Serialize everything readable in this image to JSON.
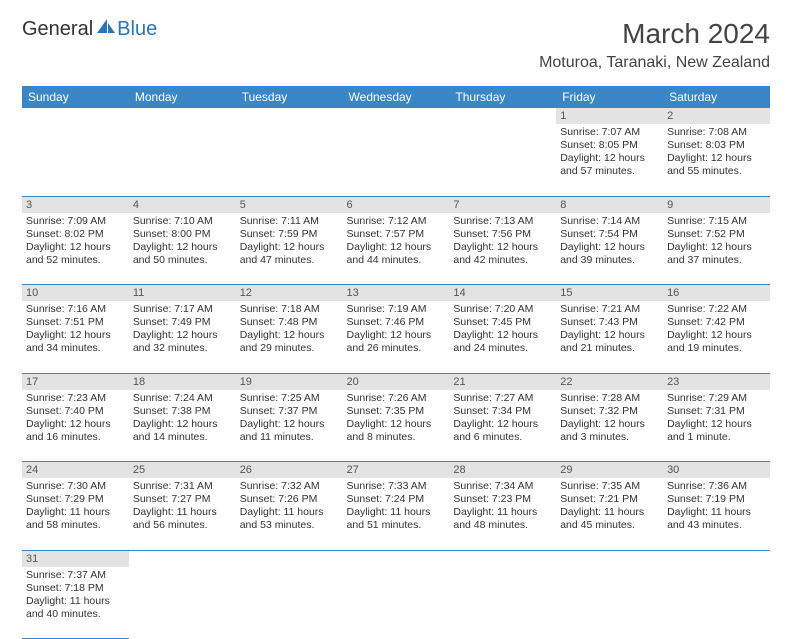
{
  "logo": {
    "text1": "General",
    "text2": "Blue"
  },
  "title": "March 2024",
  "location": "Moturoa, Taranaki, New Zealand",
  "colors": {
    "header_bg": "#3b86c6",
    "header_fg": "#ffffff",
    "daynum_bg": "#e3e3e3",
    "daynum_fg": "#555555",
    "border": "#3b86c6",
    "text": "#333333",
    "logo_blue": "#2a75bb"
  },
  "day_headers": [
    "Sunday",
    "Monday",
    "Tuesday",
    "Wednesday",
    "Thursday",
    "Friday",
    "Saturday"
  ],
  "weeks": [
    {
      "nums": [
        "",
        "",
        "",
        "",
        "",
        "1",
        "2"
      ],
      "cells": [
        null,
        null,
        null,
        null,
        null,
        {
          "sunrise": "Sunrise: 7:07 AM",
          "sunset": "Sunset: 8:05 PM",
          "day1": "Daylight: 12 hours",
          "day2": "and 57 minutes."
        },
        {
          "sunrise": "Sunrise: 7:08 AM",
          "sunset": "Sunset: 8:03 PM",
          "day1": "Daylight: 12 hours",
          "day2": "and 55 minutes."
        }
      ]
    },
    {
      "nums": [
        "3",
        "4",
        "5",
        "6",
        "7",
        "8",
        "9"
      ],
      "cells": [
        {
          "sunrise": "Sunrise: 7:09 AM",
          "sunset": "Sunset: 8:02 PM",
          "day1": "Daylight: 12 hours",
          "day2": "and 52 minutes."
        },
        {
          "sunrise": "Sunrise: 7:10 AM",
          "sunset": "Sunset: 8:00 PM",
          "day1": "Daylight: 12 hours",
          "day2": "and 50 minutes."
        },
        {
          "sunrise": "Sunrise: 7:11 AM",
          "sunset": "Sunset: 7:59 PM",
          "day1": "Daylight: 12 hours",
          "day2": "and 47 minutes."
        },
        {
          "sunrise": "Sunrise: 7:12 AM",
          "sunset": "Sunset: 7:57 PM",
          "day1": "Daylight: 12 hours",
          "day2": "and 44 minutes."
        },
        {
          "sunrise": "Sunrise: 7:13 AM",
          "sunset": "Sunset: 7:56 PM",
          "day1": "Daylight: 12 hours",
          "day2": "and 42 minutes."
        },
        {
          "sunrise": "Sunrise: 7:14 AM",
          "sunset": "Sunset: 7:54 PM",
          "day1": "Daylight: 12 hours",
          "day2": "and 39 minutes."
        },
        {
          "sunrise": "Sunrise: 7:15 AM",
          "sunset": "Sunset: 7:52 PM",
          "day1": "Daylight: 12 hours",
          "day2": "and 37 minutes."
        }
      ]
    },
    {
      "nums": [
        "10",
        "11",
        "12",
        "13",
        "14",
        "15",
        "16"
      ],
      "cells": [
        {
          "sunrise": "Sunrise: 7:16 AM",
          "sunset": "Sunset: 7:51 PM",
          "day1": "Daylight: 12 hours",
          "day2": "and 34 minutes."
        },
        {
          "sunrise": "Sunrise: 7:17 AM",
          "sunset": "Sunset: 7:49 PM",
          "day1": "Daylight: 12 hours",
          "day2": "and 32 minutes."
        },
        {
          "sunrise": "Sunrise: 7:18 AM",
          "sunset": "Sunset: 7:48 PM",
          "day1": "Daylight: 12 hours",
          "day2": "and 29 minutes."
        },
        {
          "sunrise": "Sunrise: 7:19 AM",
          "sunset": "Sunset: 7:46 PM",
          "day1": "Daylight: 12 hours",
          "day2": "and 26 minutes."
        },
        {
          "sunrise": "Sunrise: 7:20 AM",
          "sunset": "Sunset: 7:45 PM",
          "day1": "Daylight: 12 hours",
          "day2": "and 24 minutes."
        },
        {
          "sunrise": "Sunrise: 7:21 AM",
          "sunset": "Sunset: 7:43 PM",
          "day1": "Daylight: 12 hours",
          "day2": "and 21 minutes."
        },
        {
          "sunrise": "Sunrise: 7:22 AM",
          "sunset": "Sunset: 7:42 PM",
          "day1": "Daylight: 12 hours",
          "day2": "and 19 minutes."
        }
      ]
    },
    {
      "nums": [
        "17",
        "18",
        "19",
        "20",
        "21",
        "22",
        "23"
      ],
      "cells": [
        {
          "sunrise": "Sunrise: 7:23 AM",
          "sunset": "Sunset: 7:40 PM",
          "day1": "Daylight: 12 hours",
          "day2": "and 16 minutes."
        },
        {
          "sunrise": "Sunrise: 7:24 AM",
          "sunset": "Sunset: 7:38 PM",
          "day1": "Daylight: 12 hours",
          "day2": "and 14 minutes."
        },
        {
          "sunrise": "Sunrise: 7:25 AM",
          "sunset": "Sunset: 7:37 PM",
          "day1": "Daylight: 12 hours",
          "day2": "and 11 minutes."
        },
        {
          "sunrise": "Sunrise: 7:26 AM",
          "sunset": "Sunset: 7:35 PM",
          "day1": "Daylight: 12 hours",
          "day2": "and 8 minutes."
        },
        {
          "sunrise": "Sunrise: 7:27 AM",
          "sunset": "Sunset: 7:34 PM",
          "day1": "Daylight: 12 hours",
          "day2": "and 6 minutes."
        },
        {
          "sunrise": "Sunrise: 7:28 AM",
          "sunset": "Sunset: 7:32 PM",
          "day1": "Daylight: 12 hours",
          "day2": "and 3 minutes."
        },
        {
          "sunrise": "Sunrise: 7:29 AM",
          "sunset": "Sunset: 7:31 PM",
          "day1": "Daylight: 12 hours",
          "day2": "and 1 minute."
        }
      ]
    },
    {
      "nums": [
        "24",
        "25",
        "26",
        "27",
        "28",
        "29",
        "30"
      ],
      "cells": [
        {
          "sunrise": "Sunrise: 7:30 AM",
          "sunset": "Sunset: 7:29 PM",
          "day1": "Daylight: 11 hours",
          "day2": "and 58 minutes."
        },
        {
          "sunrise": "Sunrise: 7:31 AM",
          "sunset": "Sunset: 7:27 PM",
          "day1": "Daylight: 11 hours",
          "day2": "and 56 minutes."
        },
        {
          "sunrise": "Sunrise: 7:32 AM",
          "sunset": "Sunset: 7:26 PM",
          "day1": "Daylight: 11 hours",
          "day2": "and 53 minutes."
        },
        {
          "sunrise": "Sunrise: 7:33 AM",
          "sunset": "Sunset: 7:24 PM",
          "day1": "Daylight: 11 hours",
          "day2": "and 51 minutes."
        },
        {
          "sunrise": "Sunrise: 7:34 AM",
          "sunset": "Sunset: 7:23 PM",
          "day1": "Daylight: 11 hours",
          "day2": "and 48 minutes."
        },
        {
          "sunrise": "Sunrise: 7:35 AM",
          "sunset": "Sunset: 7:21 PM",
          "day1": "Daylight: 11 hours",
          "day2": "and 45 minutes."
        },
        {
          "sunrise": "Sunrise: 7:36 AM",
          "sunset": "Sunset: 7:19 PM",
          "day1": "Daylight: 11 hours",
          "day2": "and 43 minutes."
        }
      ]
    },
    {
      "nums": [
        "31",
        "",
        "",
        "",
        "",
        "",
        ""
      ],
      "cells": [
        {
          "sunrise": "Sunrise: 7:37 AM",
          "sunset": "Sunset: 7:18 PM",
          "day1": "Daylight: 11 hours",
          "day2": "and 40 minutes."
        },
        null,
        null,
        null,
        null,
        null,
        null
      ]
    }
  ]
}
